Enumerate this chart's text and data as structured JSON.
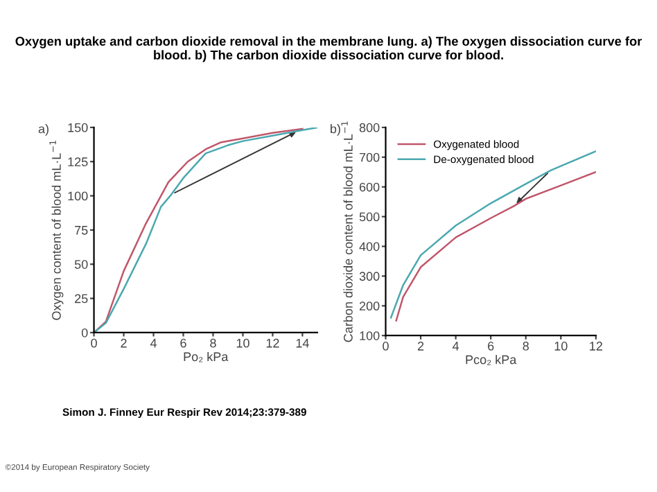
{
  "chart_data": [
    {
      "type": "line",
      "title": "Oxygen uptake and carbon dioxide removal in the membrane lung. a) The oxygen dissociation curve for blood. b) The carbon dioxide dissociation curve for blood.",
      "xlabel": "Po₂ kPa",
      "ylabel": "Oxygen content of blood mL·L$^{−1}$",
      "annotations": [
        "a)"
      ],
      "xlim": [
        0,
        15
      ],
      "ylim": [
        0,
        150
      ],
      "xticks": [
        0,
        2,
        4,
        6,
        8,
        10,
        12,
        14
      ],
      "yticks": [
        0,
        25,
        50,
        75,
        100,
        125,
        150
      ],
      "grid": false,
      "legend": false,
      "marker": "none",
      "line_style": "solid",
      "series": [
        {
          "color": "#c0566a",
          "x": [
            0,
            0.8,
            2,
            3.5,
            5,
            6.3,
            7.5,
            8.5,
            10,
            12,
            14
          ],
          "values": [
            0,
            8,
            45,
            80,
            110,
            125,
            134,
            139,
            142,
            146,
            149
          ]
        },
        {
          "color": "#4aa8b0",
          "x": [
            0,
            0.8,
            2,
            3.5,
            4.5,
            5.2,
            6,
            7.5,
            9,
            10,
            12,
            14,
            15
          ],
          "values": [
            0,
            7,
            32,
            65,
            92,
            101,
            113,
            131,
            137,
            140,
            144,
            148,
            150
          ]
        }
      ]
    },
    {
      "type": "line",
      "xlabel": "Pco₂ kPa",
      "ylabel": "Carbon dioxide content of blood mL·L$^{−1}$",
      "annotations": [
        "b)",
        "Simon J. Finney Eur Respir Rev 2014;23:379-389",
        "©2014 by European Respiratory Society"
      ],
      "xlim": [
        0,
        12
      ],
      "ylim": [
        100,
        800
      ],
      "xticks": [
        0,
        2,
        4,
        6,
        8,
        10,
        12
      ],
      "yticks": [
        100,
        200,
        300,
        400,
        500,
        600,
        700,
        800
      ],
      "grid": false,
      "legend": "top left",
      "marker": "none",
      "line_style": "solid",
      "series": [
        {
          "name": "Oxygenated blood",
          "color": "#c0566a",
          "x": [
            0.6,
            1,
            2,
            4,
            6,
            7.3,
            8,
            10,
            12
          ],
          "values": [
            150,
            230,
            330,
            430,
            495,
            535,
            560,
            605,
            650
          ]
        },
        {
          "name": "De-oxygenated blood",
          "color": "#4aa8b0",
          "x": [
            0.3,
            1,
            2,
            4,
            6,
            8,
            9.4,
            10,
            12
          ],
          "values": [
            160,
            270,
            370,
            470,
            545,
            610,
            655,
            670,
            720
          ]
        }
      ]
    }
  ]
}
